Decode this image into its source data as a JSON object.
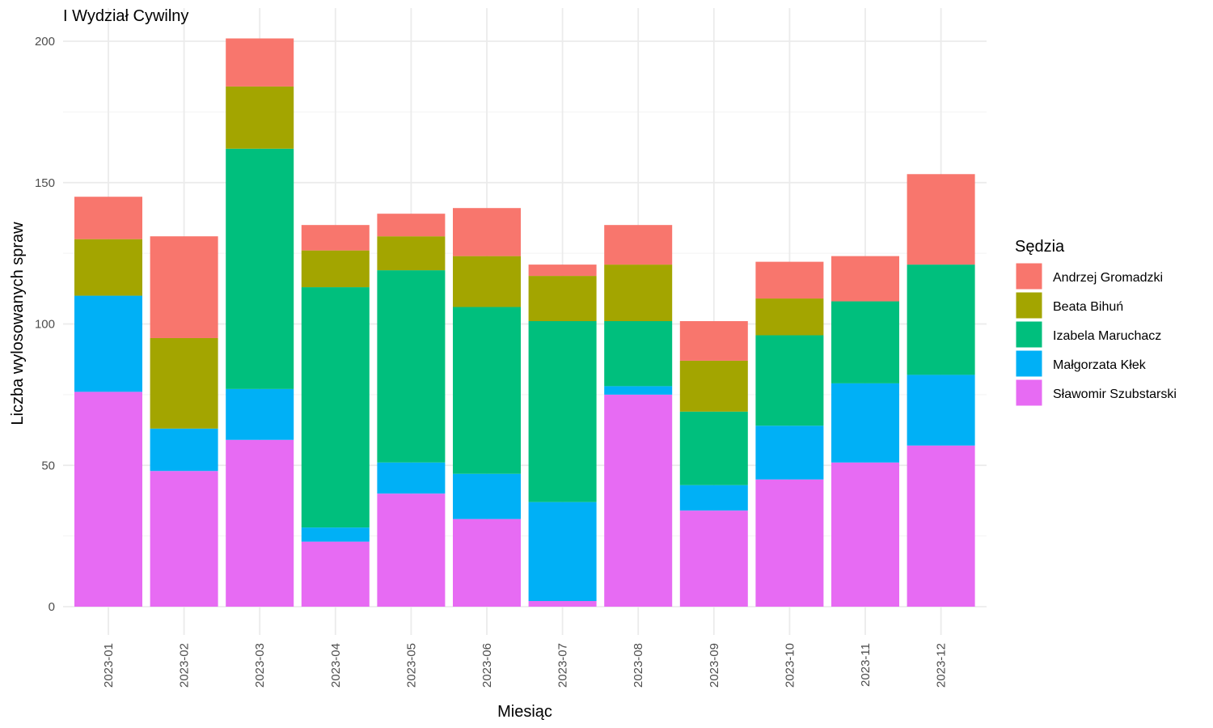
{
  "chart_data": {
    "type": "bar",
    "stacked": true,
    "title": "I Wydział Cywilny",
    "xlabel": "Miesiąc",
    "ylabel": "Liczba wylosowanych spraw",
    "ylim": [
      0,
      210
    ],
    "yticks": [
      0,
      50,
      100,
      150,
      200
    ],
    "grid": true,
    "legend_title": "Sędzia",
    "legend_position": "right",
    "categories": [
      "2023-01",
      "2023-02",
      "2023-03",
      "2023-04",
      "2023-05",
      "2023-06",
      "2023-07",
      "2023-08",
      "2023-09",
      "2023-10",
      "2023-11",
      "2023-12"
    ],
    "series": [
      {
        "name": "Sławomir Szubstarski",
        "color": "#E76BF3",
        "values": [
          76,
          48,
          59,
          23,
          40,
          31,
          2,
          75,
          34,
          45,
          51,
          57
        ]
      },
      {
        "name": "Małgorzata Kłek",
        "color": "#00B0F6",
        "values": [
          34,
          15,
          18,
          5,
          11,
          16,
          35,
          3,
          9,
          19,
          28,
          25
        ]
      },
      {
        "name": "Izabela Maruchacz",
        "color": "#00BF7D",
        "values": [
          0,
          0,
          85,
          85,
          68,
          59,
          64,
          23,
          26,
          32,
          29,
          39
        ]
      },
      {
        "name": "Beata Bihuń",
        "color": "#A3A500",
        "values": [
          20,
          32,
          22,
          13,
          12,
          18,
          16,
          20,
          18,
          13,
          0,
          0
        ]
      },
      {
        "name": "Andrzej Gromadzki",
        "color": "#F8766D",
        "values": [
          15,
          36,
          17,
          9,
          8,
          17,
          4,
          14,
          14,
          13,
          16,
          32
        ]
      }
    ],
    "legend_order": [
      "Andrzej Gromadzki",
      "Beata Bihuń",
      "Izabela Maruchacz",
      "Małgorzata Kłek",
      "Sławomir Szubstarski"
    ]
  }
}
